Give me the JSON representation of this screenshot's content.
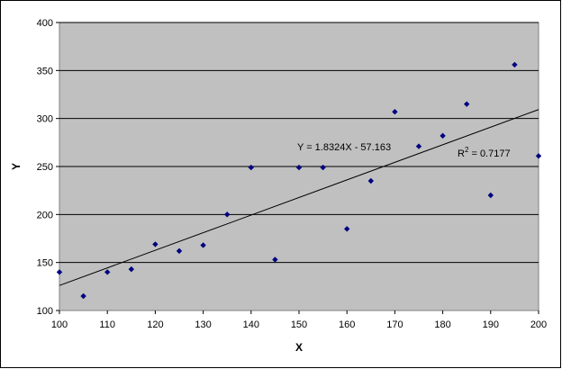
{
  "chart_data": {
    "type": "scatter",
    "xlabel": "X",
    "ylabel": "Y",
    "xlim": [
      100,
      200
    ],
    "ylim": [
      100,
      400
    ],
    "x_ticks": [
      100,
      110,
      120,
      130,
      140,
      150,
      160,
      170,
      180,
      190,
      200
    ],
    "y_ticks": [
      100,
      150,
      200,
      250,
      300,
      350,
      400
    ],
    "grid": "horizontal",
    "plot_background": "#c0c0c0",
    "point_color": "#000080",
    "trendline": {
      "slope": 1.8324,
      "intercept": -57.163,
      "equation_label": "Y = 1.8324X - 57.163",
      "r2_prefix": "R",
      "r2_superscript": "2",
      "r2_suffix": " = 0.7177"
    },
    "points": [
      {
        "x": 100,
        "y": 140
      },
      {
        "x": 105,
        "y": 115
      },
      {
        "x": 110,
        "y": 140
      },
      {
        "x": 115,
        "y": 143
      },
      {
        "x": 120,
        "y": 169
      },
      {
        "x": 125,
        "y": 162
      },
      {
        "x": 130,
        "y": 168
      },
      {
        "x": 135,
        "y": 200
      },
      {
        "x": 140,
        "y": 249
      },
      {
        "x": 145,
        "y": 153
      },
      {
        "x": 150,
        "y": 249
      },
      {
        "x": 155,
        "y": 249
      },
      {
        "x": 160,
        "y": 185
      },
      {
        "x": 165,
        "y": 235
      },
      {
        "x": 170,
        "y": 307
      },
      {
        "x": 175,
        "y": 271
      },
      {
        "x": 180,
        "y": 282
      },
      {
        "x": 185,
        "y": 315
      },
      {
        "x": 190,
        "y": 220
      },
      {
        "x": 195,
        "y": 356
      },
      {
        "x": 200,
        "y": 261
      }
    ]
  }
}
